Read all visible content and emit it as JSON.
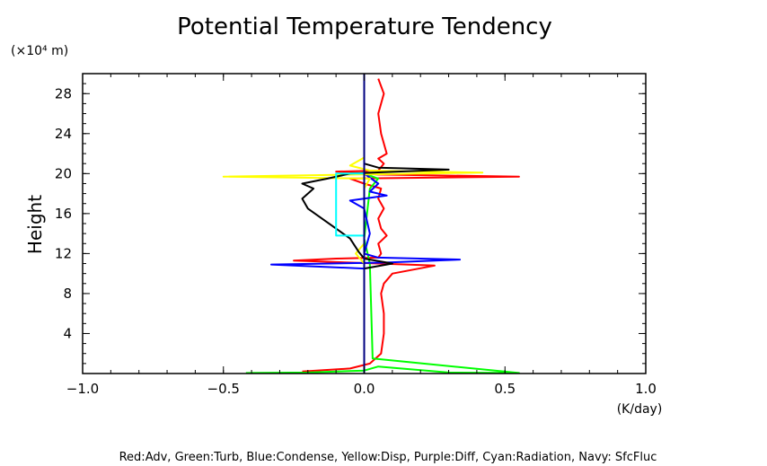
{
  "chart_data": {
    "type": "line",
    "title": "Potential Temperature Tendency",
    "ylabel": "Height",
    "y_unit_label": "(×10⁴ m)",
    "x_unit_label": "(K/day)",
    "xlim": [
      -1.0,
      1.0
    ],
    "ylim": [
      0,
      30
    ],
    "x_ticks": [
      -1.0,
      -0.5,
      0.0,
      0.5,
      1.0
    ],
    "x_tick_labels": [
      "−1.0",
      "−0.5",
      "0.0",
      "0.5",
      "1.0"
    ],
    "y_ticks": [
      4,
      8,
      12,
      16,
      20,
      24,
      28
    ],
    "y_tick_labels": [
      "4",
      "8",
      "12",
      "16",
      "20",
      "24",
      "28"
    ],
    "legend_text": "Red:Adv, Green:Turb, Blue:Condense, Yellow:Disp, Purple:Diff, Cyan:Radiation, Navy: SfcFluc",
    "legend_placement": "bottom",
    "grid": false,
    "series": [
      {
        "color": "#ff0000",
        "points": [
          [
            -0.22,
            0.2
          ],
          [
            -0.05,
            0.5
          ],
          [
            0.02,
            1.0
          ],
          [
            0.06,
            2.0
          ],
          [
            0.07,
            4.0
          ],
          [
            0.07,
            6.0
          ],
          [
            0.06,
            8.0
          ],
          [
            0.07,
            9.0
          ],
          [
            0.1,
            10.0
          ],
          [
            0.25,
            10.8
          ],
          [
            0.05,
            11.0
          ],
          [
            -0.25,
            11.3
          ],
          [
            -0.1,
            11.5
          ],
          [
            0.05,
            11.6
          ],
          [
            0.06,
            12.0
          ],
          [
            0.05,
            13.0
          ],
          [
            0.08,
            13.8
          ],
          [
            0.06,
            14.5
          ],
          [
            0.05,
            15.5
          ],
          [
            0.07,
            16.5
          ],
          [
            0.05,
            17.5
          ],
          [
            0.06,
            18.5
          ],
          [
            0.0,
            19.0
          ],
          [
            -0.05,
            19.5
          ],
          [
            0.55,
            19.7
          ],
          [
            0.05,
            19.9
          ],
          [
            -0.1,
            20.2
          ],
          [
            0.05,
            20.3
          ],
          [
            0.07,
            21.0
          ],
          [
            0.05,
            21.5
          ],
          [
            0.08,
            22.0
          ],
          [
            0.06,
            24.0
          ],
          [
            0.05,
            26.0
          ],
          [
            0.07,
            28.0
          ],
          [
            0.05,
            29.5
          ]
        ]
      },
      {
        "color": "#00ff00",
        "points": [
          [
            -0.42,
            0.05
          ],
          [
            -0.2,
            0.1
          ],
          [
            0.0,
            0.3
          ],
          [
            0.05,
            0.7
          ],
          [
            0.3,
            0.1
          ],
          [
            0.55,
            0.05
          ],
          [
            0.03,
            1.5
          ],
          [
            0.02,
            11.0
          ],
          [
            0.0,
            13.5
          ],
          [
            0.02,
            18.5
          ],
          [
            0.05,
            19.5
          ],
          [
            0.0,
            20.0
          ]
        ]
      },
      {
        "color": "#0000ff",
        "points": [
          [
            0.0,
            0.5
          ],
          [
            0.0,
            10.5
          ],
          [
            -0.33,
            10.9
          ],
          [
            0.08,
            11.1
          ],
          [
            0.34,
            11.4
          ],
          [
            0.05,
            11.6
          ],
          [
            0.0,
            12.0
          ],
          [
            0.02,
            14.0
          ],
          [
            0.0,
            16.5
          ],
          [
            -0.05,
            17.3
          ],
          [
            0.08,
            17.8
          ],
          [
            0.02,
            18.2
          ],
          [
            0.05,
            19.0
          ],
          [
            0.0,
            20.0
          ]
        ]
      },
      {
        "color": "#ffff00",
        "points": [
          [
            0.0,
            9.0
          ],
          [
            0.0,
            11.0
          ],
          [
            -0.03,
            12.0
          ],
          [
            0.0,
            13.0
          ],
          [
            0.0,
            18.5
          ],
          [
            0.02,
            19.5
          ],
          [
            -0.5,
            19.7
          ],
          [
            0.42,
            20.1
          ],
          [
            0.02,
            20.3
          ],
          [
            -0.05,
            20.8
          ],
          [
            0.0,
            21.6
          ]
        ]
      },
      {
        "color": "#000000",
        "points": [
          [
            0.0,
            1.0
          ],
          [
            0.0,
            10.5
          ],
          [
            0.1,
            11.0
          ],
          [
            0.0,
            11.5
          ],
          [
            -0.02,
            12.2
          ],
          [
            -0.05,
            13.5
          ],
          [
            -0.1,
            14.5
          ],
          [
            -0.15,
            15.5
          ],
          [
            -0.2,
            16.5
          ],
          [
            -0.22,
            17.5
          ],
          [
            -0.18,
            18.5
          ],
          [
            -0.22,
            19.0
          ],
          [
            -0.13,
            19.5
          ],
          [
            -0.05,
            20.0
          ],
          [
            0.3,
            20.4
          ],
          [
            0.05,
            20.6
          ],
          [
            0.0,
            21.0
          ]
        ]
      },
      {
        "color": "#00ffff",
        "points": [
          [
            0.0,
            13.8
          ],
          [
            -0.1,
            13.8
          ],
          [
            -0.1,
            20.0
          ],
          [
            0.0,
            20.0
          ]
        ]
      },
      {
        "color": "#000080",
        "points": [
          [
            0.0,
            0.0
          ],
          [
            0.0,
            30.0
          ]
        ]
      }
    ]
  }
}
